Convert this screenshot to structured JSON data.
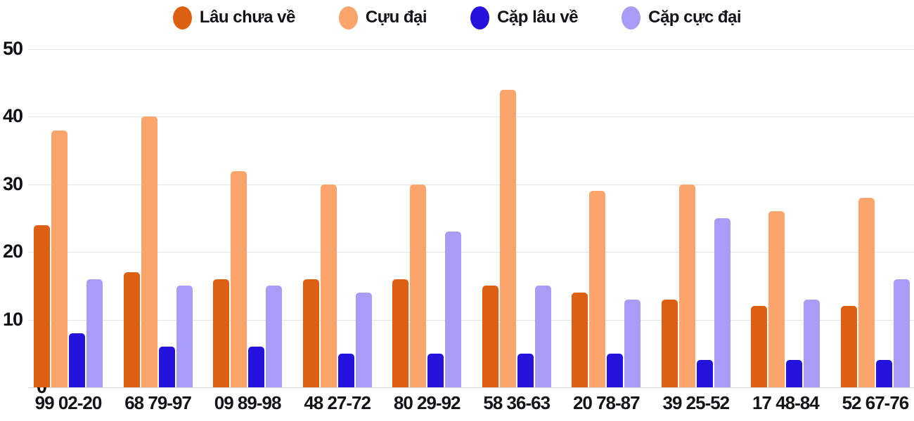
{
  "chart_data": {
    "type": "bar",
    "title": "",
    "xlabel": "",
    "ylabel": "",
    "ylim": [
      0,
      50
    ],
    "y_ticks": [
      0,
      10,
      20,
      30,
      40,
      50
    ],
    "grid": "horizontal",
    "legend_position": "top-center",
    "categories": [
      "99 02-20",
      "68 79-97",
      "09 89-98",
      "48 27-72",
      "80 29-92",
      "58 36-63",
      "20 78-87",
      "39 25-52",
      "17 48-84",
      "52 67-76"
    ],
    "series": [
      {
        "name": "Lâu chưa về",
        "color": "#dd5f12",
        "values": [
          24,
          17,
          16,
          16,
          16,
          15,
          14,
          13,
          12,
          12
        ]
      },
      {
        "name": "Cựu đại",
        "color": "#fba46c",
        "values": [
          38,
          40,
          32,
          30,
          30,
          44,
          29,
          30,
          26,
          28
        ]
      },
      {
        "name": "Cặp lâu về",
        "color": "#2413da",
        "values": [
          8,
          6,
          6,
          5,
          5,
          5,
          5,
          4,
          4,
          4
        ]
      },
      {
        "name": "Cặp cực đại",
        "color": "#a89df6",
        "values": [
          16,
          15,
          15,
          14,
          23,
          15,
          13,
          25,
          13,
          16
        ]
      }
    ],
    "colors": {
      "grid_line": "#e3e3e3",
      "zero_line": "#d6d6d6",
      "axis_text": "#131318"
    }
  }
}
